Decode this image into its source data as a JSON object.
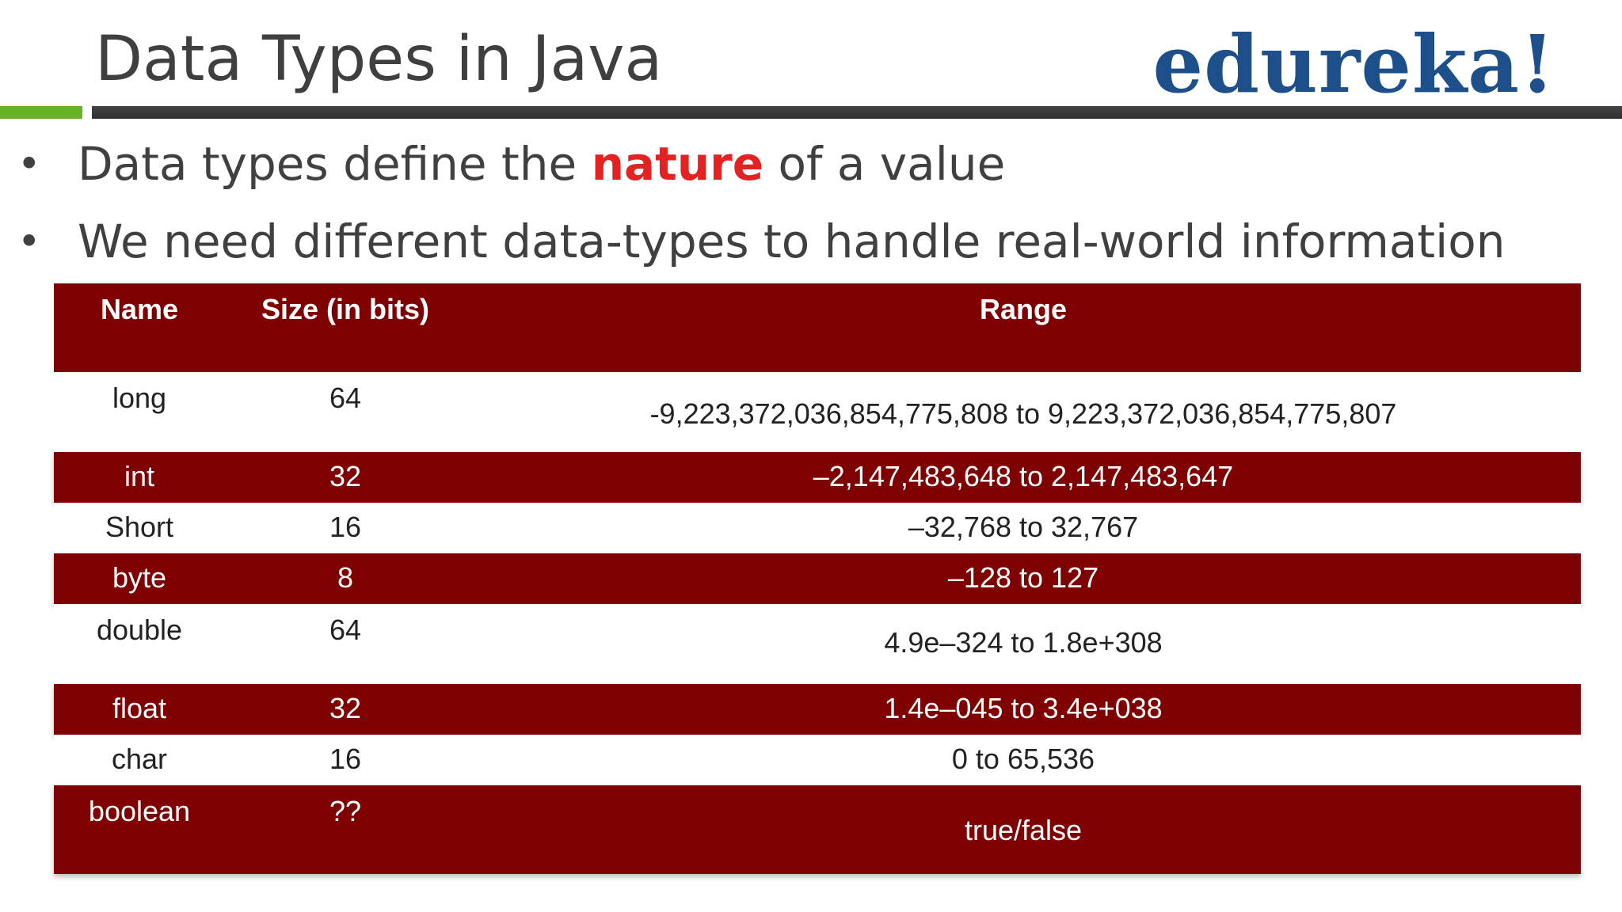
{
  "slide": {
    "title": "Data Types in Java",
    "logo_text": "edureka!",
    "colors": {
      "title": "#3f3f3f",
      "logo": "#1d4f8a",
      "green_rule": "#66b22b",
      "dark_rule": "#3a3a3a",
      "table_dark": "#7f0000",
      "highlight": "#e32222"
    }
  },
  "bullets": [
    {
      "symbol": "•",
      "before": "Data types define the ",
      "highlight": "nature",
      "after": " of a value"
    },
    {
      "symbol": "•",
      "before": "We need different data-types to handle real-world information",
      "highlight": "",
      "after": ""
    }
  ],
  "table": {
    "headers": [
      "Name",
      "Size (in bits)",
      "Range"
    ],
    "rows": [
      {
        "name": "long",
        "size": "64",
        "range": "-9,223,372,036,854,775,808 to 9,223,372,036,854,775,807"
      },
      {
        "name": "int",
        "size": "32",
        "range": "–2,147,483,648 to 2,147,483,647"
      },
      {
        "name": "Short",
        "size": "16",
        "range": "–32,768 to 32,767"
      },
      {
        "name": "byte",
        "size": "8",
        "range": "–128 to 127"
      },
      {
        "name": "double",
        "size": "64",
        "range": "4.9e–324 to 1.8e+308"
      },
      {
        "name": "float",
        "size": "32",
        "range": "1.4e–045 to 3.4e+038"
      },
      {
        "name": "char",
        "size": "16",
        "range": "0 to 65,536"
      },
      {
        "name": "boolean",
        "size": "??",
        "range": "true/false"
      }
    ]
  }
}
